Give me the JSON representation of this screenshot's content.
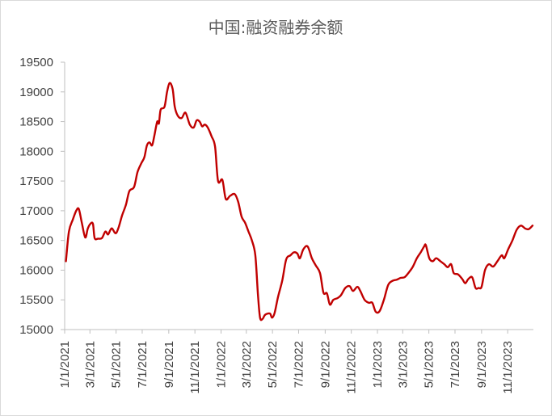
{
  "chart_data": {
    "type": "line",
    "title": "中国:融资融券余额",
    "xlabel": "",
    "ylabel": "",
    "ylim": [
      15000,
      19500
    ],
    "yticks": [
      15000,
      15500,
      16000,
      16500,
      17000,
      17500,
      18000,
      18500,
      19000,
      19500
    ],
    "xticks": [
      "1/1/2021",
      "3/1/2021",
      "5/1/2021",
      "7/1/2021",
      "9/1/2021",
      "11/1/2021",
      "1/1/2022",
      "3/1/2022",
      "5/1/2022",
      "7/1/2022",
      "9/1/2022",
      "11/1/2022",
      "1/1/2023",
      "3/1/2023",
      "5/1/2023",
      "7/1/2023",
      "9/1/2023",
      "11/1/2023"
    ],
    "x_range": [
      "2021-01-01",
      "2023-12-31"
    ],
    "grid": false,
    "legend": "none",
    "line_color": "#c00000",
    "series": [
      {
        "points": [
          [
            "2021-01-04",
            16150
          ],
          [
            "2021-01-11",
            16650
          ],
          [
            "2021-01-20",
            16850
          ],
          [
            "2021-01-28",
            17000
          ],
          [
            "2021-02-03",
            17030
          ],
          [
            "2021-02-10",
            16800
          ],
          [
            "2021-02-18",
            16550
          ],
          [
            "2021-02-24",
            16700
          ],
          [
            "2021-03-02",
            16780
          ],
          [
            "2021-03-08",
            16780
          ],
          [
            "2021-03-12",
            16540
          ],
          [
            "2021-03-20",
            16530
          ],
          [
            "2021-03-29",
            16540
          ],
          [
            "2021-04-06",
            16650
          ],
          [
            "2021-04-12",
            16600
          ],
          [
            "2021-04-18",
            16680
          ],
          [
            "2021-04-22",
            16700
          ],
          [
            "2021-04-30",
            16620
          ],
          [
            "2021-05-07",
            16720
          ],
          [
            "2021-05-15",
            16920
          ],
          [
            "2021-05-24",
            17100
          ],
          [
            "2021-06-01",
            17330
          ],
          [
            "2021-06-12",
            17400
          ],
          [
            "2021-06-20",
            17650
          ],
          [
            "2021-06-29",
            17800
          ],
          [
            "2021-07-06",
            17900
          ],
          [
            "2021-07-12",
            18100
          ],
          [
            "2021-07-18",
            18150
          ],
          [
            "2021-07-24",
            18100
          ],
          [
            "2021-07-29",
            18250
          ],
          [
            "2021-08-05",
            18500
          ],
          [
            "2021-08-09",
            18470
          ],
          [
            "2021-08-13",
            18700
          ],
          [
            "2021-08-22",
            18750
          ],
          [
            "2021-08-28",
            19000
          ],
          [
            "2021-09-03",
            19150
          ],
          [
            "2021-09-10",
            19050
          ],
          [
            "2021-09-15",
            18750
          ],
          [
            "2021-09-22",
            18600
          ],
          [
            "2021-10-01",
            18560
          ],
          [
            "2021-10-10",
            18650
          ],
          [
            "2021-10-20",
            18450
          ],
          [
            "2021-10-29",
            18400
          ],
          [
            "2021-11-05",
            18520
          ],
          [
            "2021-11-12",
            18500
          ],
          [
            "2021-11-18",
            18420
          ],
          [
            "2021-11-24",
            18450
          ],
          [
            "2021-12-01",
            18400
          ],
          [
            "2021-12-10",
            18250
          ],
          [
            "2021-12-18",
            18080
          ],
          [
            "2021-12-25",
            17500
          ],
          [
            "2022-01-04",
            17520
          ],
          [
            "2022-01-12",
            17200
          ],
          [
            "2022-01-22",
            17250
          ],
          [
            "2022-02-02",
            17280
          ],
          [
            "2022-02-10",
            17150
          ],
          [
            "2022-02-18",
            16900
          ],
          [
            "2022-02-26",
            16800
          ],
          [
            "2022-03-06",
            16650
          ],
          [
            "2022-03-14",
            16500
          ],
          [
            "2022-03-22",
            16250
          ],
          [
            "2022-03-28",
            15600
          ],
          [
            "2022-04-02",
            15200
          ],
          [
            "2022-04-08",
            15180
          ],
          [
            "2022-04-14",
            15250
          ],
          [
            "2022-04-25",
            15270
          ],
          [
            "2022-04-30",
            15200
          ],
          [
            "2022-05-06",
            15280
          ],
          [
            "2022-05-14",
            15550
          ],
          [
            "2022-05-24",
            15830
          ],
          [
            "2022-06-02",
            16180
          ],
          [
            "2022-06-12",
            16250
          ],
          [
            "2022-06-20",
            16300
          ],
          [
            "2022-06-28",
            16280
          ],
          [
            "2022-07-04",
            16200
          ],
          [
            "2022-07-12",
            16350
          ],
          [
            "2022-07-22",
            16400
          ],
          [
            "2022-08-01",
            16200
          ],
          [
            "2022-08-10",
            16080
          ],
          [
            "2022-08-20",
            15950
          ],
          [
            "2022-08-28",
            15620
          ],
          [
            "2022-09-05",
            15610
          ],
          [
            "2022-09-12",
            15420
          ],
          [
            "2022-09-20",
            15500
          ],
          [
            "2022-09-30",
            15530
          ],
          [
            "2022-10-08",
            15580
          ],
          [
            "2022-10-18",
            15700
          ],
          [
            "2022-10-28",
            15730
          ],
          [
            "2022-11-05",
            15650
          ],
          [
            "2022-11-15",
            15720
          ],
          [
            "2022-11-22",
            15650
          ],
          [
            "2022-12-02",
            15500
          ],
          [
            "2022-12-12",
            15450
          ],
          [
            "2022-12-20",
            15450
          ],
          [
            "2022-12-28",
            15300
          ],
          [
            "2023-01-06",
            15310
          ],
          [
            "2023-01-16",
            15500
          ],
          [
            "2023-01-26",
            15750
          ],
          [
            "2023-02-05",
            15820
          ],
          [
            "2023-02-15",
            15840
          ],
          [
            "2023-02-24",
            15870
          ],
          [
            "2023-03-05",
            15880
          ],
          [
            "2023-03-14",
            15950
          ],
          [
            "2023-03-24",
            16050
          ],
          [
            "2023-04-03",
            16200
          ],
          [
            "2023-04-12",
            16300
          ],
          [
            "2023-04-20",
            16400
          ],
          [
            "2023-04-24",
            16420
          ],
          [
            "2023-05-02",
            16200
          ],
          [
            "2023-05-10",
            16150
          ],
          [
            "2023-05-18",
            16200
          ],
          [
            "2023-05-28",
            16150
          ],
          [
            "2023-06-06",
            16100
          ],
          [
            "2023-06-14",
            16050
          ],
          [
            "2023-06-22",
            16100
          ],
          [
            "2023-06-28",
            15950
          ],
          [
            "2023-07-08",
            15930
          ],
          [
            "2023-07-18",
            15850
          ],
          [
            "2023-07-25",
            15780
          ],
          [
            "2023-08-01",
            15850
          ],
          [
            "2023-08-10",
            15880
          ],
          [
            "2023-08-18",
            15700
          ],
          [
            "2023-08-25",
            15700
          ],
          [
            "2023-09-01",
            15720
          ],
          [
            "2023-09-09",
            16000
          ],
          [
            "2023-09-18",
            16100
          ],
          [
            "2023-09-28",
            16060
          ],
          [
            "2023-10-08",
            16150
          ],
          [
            "2023-10-18",
            16250
          ],
          [
            "2023-10-24",
            16200
          ],
          [
            "2023-11-02",
            16350
          ],
          [
            "2023-11-12",
            16500
          ],
          [
            "2023-11-22",
            16680
          ],
          [
            "2023-12-02",
            16750
          ],
          [
            "2023-12-12",
            16700
          ],
          [
            "2023-12-20",
            16690
          ],
          [
            "2023-12-29",
            16750
          ]
        ]
      }
    ]
  }
}
